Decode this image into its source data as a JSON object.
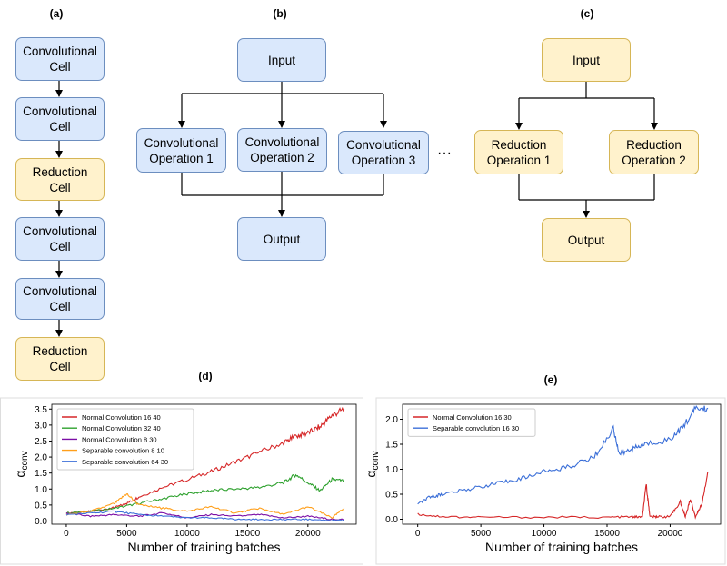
{
  "panel_labels": {
    "a": "(a)",
    "b": "(b)",
    "c": "(c)",
    "d": "(d)",
    "e": "(e)"
  },
  "panel_a": {
    "cells": [
      {
        "label": "Convolutional\nCell",
        "kind": "convolutional"
      },
      {
        "label": "Convolutional\nCell",
        "kind": "convolutional"
      },
      {
        "label": "Reduction\nCell",
        "kind": "reduction"
      },
      {
        "label": "Convolutional\nCell",
        "kind": "convolutional"
      },
      {
        "label": "Convolutional\nCell",
        "kind": "convolutional"
      },
      {
        "label": "Reduction\nCell",
        "kind": "reduction"
      }
    ]
  },
  "panel_b": {
    "input": "Input",
    "ops": [
      "Convolutional\nOperation 1",
      "Convolutional\nOperation 2",
      "Convolutional\nOperation 3"
    ],
    "output": "Output",
    "ellipsis": "···"
  },
  "panel_c": {
    "input": "Input",
    "ops": [
      "Reduction\nOperation 1",
      "Reduction\nOperation 2"
    ],
    "output": "Output"
  },
  "colors": {
    "convolutional_fill": "#dae8fc",
    "convolutional_stroke": "#6c8ebf",
    "reduction_fill": "#fff2cc",
    "reduction_stroke": "#d6b656"
  },
  "chart_data": [
    {
      "type": "line",
      "panel": "(d)",
      "xlabel": "Number of training batches",
      "ylabel": "α_conv",
      "xlim": [
        -1200,
        24000
      ],
      "ylim": [
        -0.1,
        3.65
      ],
      "xticks": [
        0,
        5000,
        10000,
        15000,
        20000
      ],
      "yticks": [
        0.0,
        0.5,
        1.0,
        1.5,
        2.0,
        2.5,
        3.0,
        3.5
      ],
      "legend_position": "top-left",
      "series": [
        {
          "name": "Normal Convolution  16  40",
          "color": "#d62728",
          "x": [
            0,
            2000,
            4000,
            5000,
            6000,
            8000,
            10000,
            12000,
            14000,
            16000,
            18000,
            19000,
            20000,
            21000,
            22000,
            23000
          ],
          "y": [
            0.25,
            0.3,
            0.42,
            0.55,
            0.75,
            1.05,
            1.3,
            1.55,
            1.85,
            2.15,
            2.45,
            2.65,
            2.75,
            2.95,
            3.3,
            3.5
          ]
        },
        {
          "name": "Normal Convolution  32  40",
          "color": "#2ca02c",
          "x": [
            0,
            2000,
            4000,
            6000,
            8000,
            10000,
            12000,
            14000,
            16000,
            18000,
            19000,
            20000,
            21000,
            22000,
            23000
          ],
          "y": [
            0.25,
            0.3,
            0.4,
            0.55,
            0.7,
            0.85,
            0.95,
            1.0,
            1.05,
            1.2,
            1.45,
            1.2,
            0.95,
            1.3,
            1.25
          ]
        },
        {
          "name": "Normal Convolution  8  30",
          "color": "#7b0ea6",
          "x": [
            0,
            2000,
            4000,
            6000,
            8000,
            10000,
            12000,
            14000,
            16000,
            18000,
            20000,
            22000,
            23000
          ],
          "y": [
            0.25,
            0.15,
            0.2,
            0.15,
            0.25,
            0.1,
            0.2,
            0.15,
            0.2,
            0.1,
            0.15,
            0.05,
            0.05
          ]
        },
        {
          "name": "Separable convolution  8  10",
          "color": "#ff9f1a",
          "x": [
            0,
            2000,
            4000,
            5000,
            6000,
            8000,
            10000,
            12000,
            14000,
            16000,
            18000,
            20000,
            22000,
            23000
          ],
          "y": [
            0.2,
            0.3,
            0.55,
            0.85,
            0.5,
            0.4,
            0.3,
            0.45,
            0.25,
            0.4,
            0.2,
            0.45,
            0.1,
            0.4
          ]
        },
        {
          "name": "Separable convolution  64  30",
          "color": "#3b6fd8",
          "x": [
            0,
            2000,
            4000,
            6000,
            8000,
            10000,
            12000,
            14000,
            16000,
            18000,
            20000,
            22000,
            23000
          ],
          "y": [
            0.2,
            0.25,
            0.3,
            0.2,
            0.15,
            0.1,
            0.1,
            0.05,
            0.05,
            0.05,
            0.05,
            0.02,
            0.02
          ]
        }
      ]
    },
    {
      "type": "line",
      "panel": "(e)",
      "xlabel": "Number of training batches",
      "ylabel": "α_conv",
      "xlim": [
        -1200,
        24000
      ],
      "ylim": [
        -0.1,
        2.3
      ],
      "xticks": [
        0,
        5000,
        10000,
        15000,
        20000
      ],
      "yticks": [
        0.0,
        0.5,
        1.0,
        1.5,
        2.0
      ],
      "legend_position": "top-left",
      "series": [
        {
          "name": "Normal Convolution  16  30",
          "color": "#d62728",
          "x": [
            0,
            2000,
            5000,
            10000,
            15000,
            17000,
            17800,
            18100,
            18400,
            19000,
            20000,
            20800,
            21200,
            21600,
            22000,
            22500,
            23000
          ],
          "y": [
            0.1,
            0.05,
            0.04,
            0.04,
            0.04,
            0.05,
            0.04,
            0.7,
            0.05,
            0.05,
            0.05,
            0.35,
            0.05,
            0.4,
            0.05,
            0.3,
            0.95
          ]
        },
        {
          "name": "Separable convolution  16  30",
          "color": "#3b6fd8",
          "x": [
            0,
            1000,
            2000,
            4000,
            6000,
            8000,
            10000,
            12000,
            14000,
            15500,
            16000,
            17000,
            18000,
            20000,
            21000,
            22000,
            23000
          ],
          "y": [
            0.3,
            0.45,
            0.5,
            0.6,
            0.7,
            0.8,
            0.95,
            1.05,
            1.25,
            1.8,
            1.3,
            1.4,
            1.5,
            1.6,
            1.85,
            2.2,
            2.22
          ]
        }
      ]
    }
  ]
}
